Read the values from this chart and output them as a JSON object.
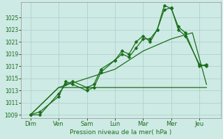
{
  "background_color": "#ceeae5",
  "grid_color": "#a8cec8",
  "line_color": "#1a6e1a",
  "xlabel": "Pression niveau de la mer( hPa )",
  "ylim": [
    1008.5,
    1027.5
  ],
  "yticks": [
    1009,
    1011,
    1013,
    1015,
    1017,
    1019,
    1021,
    1023,
    1025
  ],
  "day_labels": [
    "Dim",
    "Ven",
    "Sam",
    "Lun",
    "Mar",
    "Mer",
    "Jeu"
  ],
  "day_positions": [
    0,
    24,
    48,
    72,
    96,
    120,
    144
  ],
  "xlim": [
    -8,
    162
  ],
  "series_jagged1_x": [
    0,
    8,
    24,
    30,
    36,
    48,
    54,
    60,
    72,
    78,
    84,
    90,
    96,
    102,
    108,
    114,
    120,
    126,
    132,
    144,
    150
  ],
  "series_jagged1_y": [
    1009,
    1009.5,
    1012,
    1014.5,
    1014,
    1013,
    1013.5,
    1016.0,
    1018.0,
    1019,
    1018.5,
    1020,
    1021.5,
    1021.5,
    1023,
    1026.3,
    1026.6,
    1023,
    1022,
    1017.3,
    1017
  ],
  "series_jagged2_x": [
    0,
    8,
    24,
    30,
    36,
    48,
    54,
    60,
    72,
    78,
    84,
    90,
    96,
    102,
    108,
    114,
    120,
    126,
    132,
    144,
    150
  ],
  "series_jagged2_y": [
    1009,
    1009,
    1012.5,
    1014,
    1014.5,
    1013.5,
    1014,
    1016.5,
    1018,
    1019.5,
    1019,
    1021,
    1022,
    1021,
    1023,
    1027.0,
    1026.5,
    1023.5,
    1022.5,
    1017,
    1017.3
  ],
  "series_flat_x": [
    0,
    24,
    48,
    90,
    114,
    126,
    150
  ],
  "series_flat_y": [
    1009,
    1013.5,
    1013.5,
    1013.5,
    1013.5,
    1013.5,
    1013.5
  ],
  "series_diagonal_x": [
    0,
    24,
    48,
    72,
    96,
    120,
    138,
    150
  ],
  "series_diagonal_y": [
    1009,
    1013.5,
    1015.0,
    1016.5,
    1019.5,
    1021.5,
    1022.5,
    1014.0
  ]
}
